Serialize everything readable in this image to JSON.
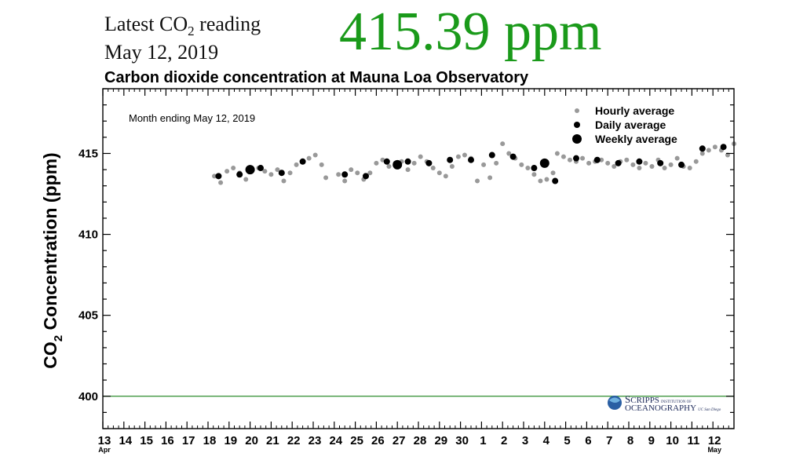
{
  "header": {
    "latest_prefix": "Latest CO",
    "latest_sub": "2",
    "latest_suffix": " reading",
    "date": "May 12, 2019",
    "reading": "415.39 ppm",
    "reading_color": "#1a9a1a"
  },
  "chart_data": {
    "type": "scatter",
    "title": "Carbon dioxide concentration at Mauna Loa Observatory",
    "annotation": "Month ending May 12, 2019",
    "ylabel_prefix": "CO",
    "ylabel_sub": "2",
    "ylabel_suffix": " Concentration (ppm)",
    "ylim": [
      398,
      419
    ],
    "yticks": [
      400,
      405,
      410,
      415
    ],
    "xlim": [
      0,
      30
    ],
    "xtick_labels": [
      "13",
      "14",
      "15",
      "16",
      "17",
      "18",
      "19",
      "20",
      "21",
      "22",
      "23",
      "24",
      "25",
      "26",
      "27",
      "28",
      "29",
      "30",
      "1",
      "2",
      "3",
      "4",
      "5",
      "6",
      "7",
      "8",
      "9",
      "10",
      "11",
      "12"
    ],
    "month_labels": [
      {
        "day_index": 0,
        "text": "Apr"
      },
      {
        "day_index": 29,
        "text": "May"
      }
    ],
    "reference_line": {
      "y": 400,
      "color": "#2e8b2e"
    },
    "legend": {
      "position": "top-right",
      "entries": [
        {
          "label": "Hourly average",
          "marker": "small-gray"
        },
        {
          "label": "Daily average",
          "marker": "medium-black"
        },
        {
          "label": "Weekly average",
          "marker": "large-black"
        }
      ]
    },
    "series": [
      {
        "name": "Hourly average",
        "color": "#999999",
        "segments": [
          {
            "x0": 5.3,
            "x1": 10.6,
            "points": [
              [
                5.3,
                413.6
              ],
              [
                5.6,
                413.2
              ],
              [
                5.9,
                413.9
              ],
              [
                6.2,
                414.1
              ],
              [
                6.5,
                413.8
              ],
              [
                6.8,
                413.4
              ],
              [
                7.1,
                414.0
              ],
              [
                7.4,
                414.1
              ],
              [
                7.7,
                413.9
              ],
              [
                8.0,
                413.7
              ],
              [
                8.3,
                414.0
              ],
              [
                8.6,
                413.3
              ],
              [
                8.9,
                413.8
              ],
              [
                9.2,
                414.3
              ],
              [
                9.5,
                414.5
              ],
              [
                9.8,
                414.7
              ],
              [
                10.1,
                414.9
              ],
              [
                10.4,
                414.3
              ],
              [
                10.6,
                413.5
              ]
            ]
          },
          {
            "x0": 11.2,
            "x1": 21.4,
            "points": [
              [
                11.2,
                413.7
              ],
              [
                11.5,
                413.3
              ],
              [
                11.8,
                414.0
              ],
              [
                12.1,
                413.8
              ],
              [
                12.4,
                413.4
              ],
              [
                12.7,
                413.8
              ],
              [
                13.0,
                414.4
              ],
              [
                13.3,
                414.6
              ],
              [
                13.6,
                414.2
              ],
              [
                13.9,
                414.4
              ],
              [
                14.2,
                414.5
              ],
              [
                14.5,
                414.0
              ],
              [
                14.8,
                414.4
              ],
              [
                15.1,
                414.8
              ],
              [
                15.4,
                414.5
              ],
              [
                15.7,
                414.1
              ],
              [
                16.0,
                413.8
              ],
              [
                16.3,
                413.6
              ],
              [
                16.6,
                414.2
              ],
              [
                16.9,
                414.8
              ],
              [
                17.2,
                414.9
              ],
              [
                17.5,
                414.7
              ],
              [
                17.8,
                413.3
              ],
              [
                18.1,
                414.3
              ],
              [
                18.4,
                413.5
              ],
              [
                18.7,
                414.4
              ],
              [
                19.0,
                415.6
              ],
              [
                19.3,
                415.0
              ],
              [
                19.6,
                414.7
              ],
              [
                19.9,
                414.3
              ],
              [
                20.2,
                414.1
              ],
              [
                20.5,
                413.7
              ],
              [
                20.8,
                413.3
              ],
              [
                21.1,
                413.4
              ],
              [
                21.4,
                413.8
              ]
            ]
          },
          {
            "x0": 21.6,
            "x1": 30.0,
            "points": [
              [
                21.6,
                415.0
              ],
              [
                21.9,
                414.8
              ],
              [
                22.2,
                414.6
              ],
              [
                22.5,
                414.5
              ],
              [
                22.8,
                414.7
              ],
              [
                23.1,
                414.4
              ],
              [
                23.4,
                414.5
              ],
              [
                23.7,
                414.6
              ],
              [
                24.0,
                414.4
              ],
              [
                24.3,
                414.2
              ],
              [
                24.6,
                414.5
              ],
              [
                24.9,
                414.6
              ],
              [
                25.2,
                414.3
              ],
              [
                25.5,
                414.1
              ],
              [
                25.8,
                414.4
              ],
              [
                26.1,
                414.2
              ],
              [
                26.4,
                414.6
              ],
              [
                26.7,
                414.1
              ],
              [
                27.0,
                414.3
              ],
              [
                27.3,
                414.7
              ],
              [
                27.6,
                414.2
              ],
              [
                27.9,
                414.1
              ],
              [
                28.2,
                414.5
              ],
              [
                28.5,
                415.0
              ],
              [
                28.8,
                415.2
              ],
              [
                29.1,
                415.4
              ],
              [
                29.4,
                415.2
              ],
              [
                29.7,
                414.9
              ],
              [
                30.0,
                415.6
              ]
            ]
          }
        ]
      },
      {
        "name": "Daily average",
        "color": "#000000",
        "points": [
          [
            5.5,
            413.6
          ],
          [
            6.5,
            413.7
          ],
          [
            7.5,
            414.1
          ],
          [
            8.5,
            413.8
          ],
          [
            9.5,
            414.5
          ],
          [
            11.5,
            413.7
          ],
          [
            12.5,
            413.6
          ],
          [
            13.5,
            414.5
          ],
          [
            14.5,
            414.5
          ],
          [
            15.5,
            414.4
          ],
          [
            16.5,
            414.6
          ],
          [
            17.5,
            414.6
          ],
          [
            18.5,
            414.9
          ],
          [
            19.5,
            414.8
          ],
          [
            20.5,
            414.1
          ],
          [
            21.5,
            413.3
          ],
          [
            22.5,
            414.7
          ],
          [
            23.5,
            414.6
          ],
          [
            24.5,
            414.4
          ],
          [
            25.5,
            414.5
          ],
          [
            26.5,
            414.4
          ],
          [
            27.5,
            414.3
          ],
          [
            28.5,
            415.3
          ],
          [
            29.5,
            415.4
          ]
        ]
      },
      {
        "name": "Weekly average",
        "color": "#000000",
        "points": [
          [
            7.0,
            414.0
          ],
          [
            14.0,
            414.3
          ],
          [
            21.0,
            414.4
          ]
        ]
      }
    ]
  },
  "logo": {
    "line1_big": "S",
    "line1_rest": "CRIPPS",
    "line1_small": "INSTITUTION OF",
    "line2": "OCEANOGRAPHY",
    "line2_small": "UC San Diego"
  }
}
